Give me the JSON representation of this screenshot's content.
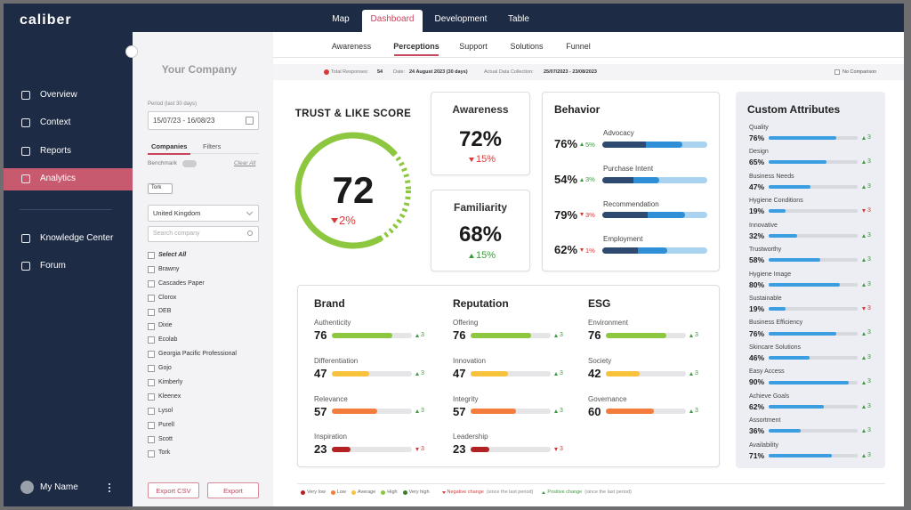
{
  "brand": "caliber",
  "nav": {
    "items": [
      "Overview",
      "Context",
      "Reports",
      "Analytics",
      "Knowledge Center",
      "Forum"
    ],
    "active": 3
  },
  "user": "My Name",
  "top_tabs": {
    "items": [
      "Map",
      "Dashboard",
      "Development",
      "Table"
    ],
    "active": 1
  },
  "sub_tabs": {
    "items": [
      "Awareness",
      "Perceptions",
      "Support",
      "Solutions",
      "Funnel"
    ],
    "active": 1
  },
  "info": {
    "responses_label": "Total Responses:",
    "responses": 54,
    "date_label": "Date:",
    "date": "24 August 2023 (30 days)",
    "collection_label": "Actual Data Collection:",
    "collection": "25/07/2023 - 23/08/2023",
    "comparison": "No Comparison"
  },
  "filters": {
    "title": "Your Company",
    "period_label": "Period (last 30 days)",
    "period": "15/07/23 - 16/08/23",
    "tabs": [
      "Companies",
      "Filters"
    ],
    "benchmark": "Benchmark",
    "clear": "Clear All",
    "chips": [
      "Tork"
    ],
    "country": "United Kingdom",
    "search_placeholder": "Search company",
    "select_all": "Select All",
    "companies": [
      "Brawny",
      "Cascades Paper",
      "Clorox",
      "DEB",
      "Dixie",
      "Ecolab",
      "Georgia Pacific Professional",
      "Gojo",
      "Kimberly",
      "Kleenex",
      "Lysol",
      "Purell",
      "Scott",
      "Tork"
    ],
    "buttons": [
      "Export CSV",
      "Export"
    ]
  },
  "trust": {
    "title": "TRUST & LIKE SCORE",
    "value": 72,
    "change": "2%",
    "trend": "down",
    "color": "#8dc63f"
  },
  "kpis": [
    {
      "title": "Awareness",
      "value": "72%",
      "change": "15%",
      "trend": "down"
    },
    {
      "title": "Familiarity",
      "value": "68%",
      "change": "15%",
      "trend": "up"
    }
  ],
  "behavior": {
    "title": "Behavior",
    "rows": [
      {
        "name": "Advocacy",
        "value": 76,
        "value_label": "76%",
        "change": "5%",
        "trend": "up"
      },
      {
        "name": "Purchase Intent",
        "value": 54,
        "value_label": "54%",
        "change": "3%",
        "trend": "up"
      },
      {
        "name": "Recommendation",
        "value": 79,
        "value_label": "79%",
        "change": "3%",
        "trend": "down"
      },
      {
        "name": "Employment",
        "value": 62,
        "value_label": "62%",
        "change": "1%",
        "trend": "down"
      }
    ]
  },
  "groups": [
    {
      "title": "Brand",
      "items": [
        {
          "name": "Authenticity",
          "value": 76,
          "change": 3,
          "trend": "up",
          "color": "#8dc63f"
        },
        {
          "name": "Differentiation",
          "value": 47,
          "change": 3,
          "trend": "up",
          "color": "#f9c23c"
        },
        {
          "name": "Relevance",
          "value": 57,
          "change": 3,
          "trend": "up",
          "color": "#f47c3c"
        },
        {
          "name": "Inspiration",
          "value": 23,
          "change": 3,
          "trend": "down",
          "color": "#b22222"
        }
      ]
    },
    {
      "title": "Reputation",
      "items": [
        {
          "name": "Offering",
          "value": 76,
          "change": 3,
          "trend": "up",
          "color": "#8dc63f"
        },
        {
          "name": "Innovation",
          "value": 47,
          "change": 3,
          "trend": "up",
          "color": "#f9c23c"
        },
        {
          "name": "Integrity",
          "value": 57,
          "change": 3,
          "trend": "up",
          "color": "#f47c3c"
        },
        {
          "name": "Leadership",
          "value": 23,
          "change": 3,
          "trend": "down",
          "color": "#b22222"
        }
      ]
    },
    {
      "title": "ESG",
      "items": [
        {
          "name": "Environment",
          "value": 76,
          "change": 3,
          "trend": "up",
          "color": "#8dc63f"
        },
        {
          "name": "Society",
          "value": 42,
          "change": 3,
          "trend": "up",
          "color": "#f9c23c"
        },
        {
          "name": "Governance",
          "value": 60,
          "change": 3,
          "trend": "up",
          "color": "#f47c3c"
        }
      ]
    }
  ],
  "custom": {
    "title": "Custom Attributes",
    "color": "#3b9ee0",
    "items": [
      {
        "name": "Quality",
        "value": 76,
        "value_label": "76%",
        "change": 3,
        "trend": "up"
      },
      {
        "name": "Design",
        "value": 65,
        "value_label": "65%",
        "change": 3,
        "trend": "up"
      },
      {
        "name": "Business Needs",
        "value": 47,
        "value_label": "47%",
        "change": 3,
        "trend": "up"
      },
      {
        "name": "Hygiene Conditions",
        "value": 19,
        "value_label": "19%",
        "change": 3,
        "trend": "down"
      },
      {
        "name": "Innovative",
        "value": 32,
        "value_label": "32%",
        "change": 3,
        "trend": "up"
      },
      {
        "name": "Trustworthy",
        "value": 58,
        "value_label": "58%",
        "change": 3,
        "trend": "up"
      },
      {
        "name": "Hygiene Image",
        "value": 80,
        "value_label": "80%",
        "change": 3,
        "trend": "up"
      },
      {
        "name": "Sustainable",
        "value": 19,
        "value_label": "19%",
        "change": 3,
        "trend": "down"
      },
      {
        "name": "Business Efficiency",
        "value": 76,
        "value_label": "76%",
        "change": 3,
        "trend": "up"
      },
      {
        "name": "Skincare Solutions",
        "value": 46,
        "value_label": "46%",
        "change": 3,
        "trend": "up"
      },
      {
        "name": "Easy Access",
        "value": 90,
        "value_label": "90%",
        "change": 3,
        "trend": "up"
      },
      {
        "name": "Achieve Goals",
        "value": 62,
        "value_label": "62%",
        "change": 3,
        "trend": "up"
      },
      {
        "name": "Assortment",
        "value": 36,
        "value_label": "36%",
        "change": 3,
        "trend": "up"
      },
      {
        "name": "Availability",
        "value": 71,
        "value_label": "71%",
        "change": 3,
        "trend": "up"
      }
    ]
  },
  "legend": {
    "levels": [
      {
        "name": "Very low",
        "color": "#b22222"
      },
      {
        "name": "Low",
        "color": "#f47c3c"
      },
      {
        "name": "Average",
        "color": "#f9c23c"
      },
      {
        "name": "High",
        "color": "#8dc63f"
      },
      {
        "name": "Very high",
        "color": "#3d7d2a"
      }
    ],
    "changes": [
      {
        "name": "Negative change",
        "note": "(since the last period)",
        "trend": "down"
      },
      {
        "name": "Positive change",
        "note": "(since the last period)",
        "trend": "up"
      }
    ]
  }
}
